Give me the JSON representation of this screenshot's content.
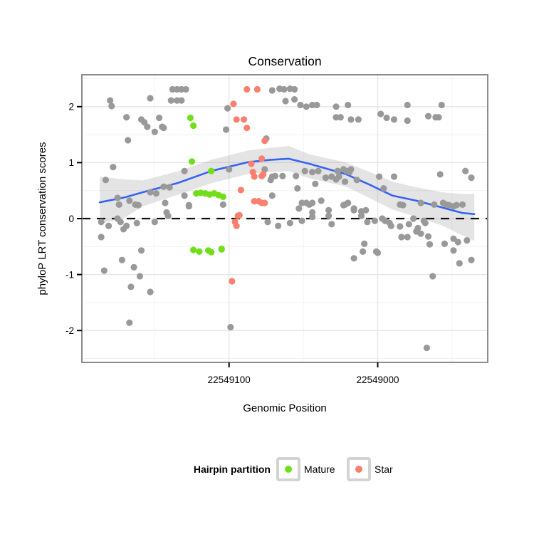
{
  "title": "Conservation",
  "legend": {
    "title": "Hairpin partition",
    "items": [
      {
        "label": "Mature"
      },
      {
        "label": "Star"
      }
    ]
  },
  "chart_data": {
    "type": "scatter",
    "title": "Conservation",
    "xlabel": "Genomic Position",
    "ylabel": "phyloP LRT conservation scores",
    "x_axis": {
      "domain_left": 22549199,
      "domain_right": 22548926,
      "ticks": [
        22549100,
        22549000
      ],
      "minor_ticks": [
        22549150,
        22549050,
        22548950
      ],
      "reversed": true
    },
    "y_axis": {
      "domain_min": -2.57,
      "domain_max": 2.57,
      "ticks": [
        2,
        1,
        0,
        -1,
        -2
      ],
      "minor_ticks": [
        2.5,
        1.5,
        0.5,
        -0.5,
        -1.5,
        -2.5
      ]
    },
    "reference_line": {
      "y": 0,
      "style": "dashed",
      "color": "#111111"
    },
    "point_radius": 4.6,
    "grid": {
      "major_color": "#e4e4e4",
      "minor_color": "#f2f2f2"
    },
    "panel": {
      "border_color": "#8c8c8c",
      "background": "#ffffff"
    },
    "smooth": {
      "color": "#3564f2",
      "band_color": "#9e9e9e",
      "band_opacity": 0.28,
      "line": [
        [
          22549187,
          0.29
        ],
        [
          22549170,
          0.38
        ],
        [
          22549158,
          0.47
        ],
        [
          22549134,
          0.64
        ],
        [
          22549112,
          0.85
        ],
        [
          22549087,
          1.01
        ],
        [
          22549072,
          1.05
        ],
        [
          22549060,
          1.07
        ],
        [
          22549046,
          0.98
        ],
        [
          22549021,
          0.79
        ],
        [
          22549005,
          0.6
        ],
        [
          22548990,
          0.41
        ],
        [
          22548974,
          0.32
        ],
        [
          22548957,
          0.2
        ],
        [
          22548943,
          0.1
        ],
        [
          22548935,
          0.08
        ]
      ],
      "band": [
        [
          22549187,
          0.75,
          -0.1
        ],
        [
          22549170,
          0.7,
          0.02
        ],
        [
          22549158,
          0.68,
          0.22
        ],
        [
          22549134,
          0.85,
          0.43
        ],
        [
          22549112,
          1.05,
          0.63
        ],
        [
          22549087,
          1.22,
          0.8
        ],
        [
          22549060,
          1.3,
          0.85
        ],
        [
          22549046,
          1.15,
          0.72
        ],
        [
          22549021,
          1.0,
          0.57
        ],
        [
          22549005,
          0.83,
          0.36
        ],
        [
          22548990,
          0.66,
          0.16
        ],
        [
          22548974,
          0.56,
          0.03
        ],
        [
          22548957,
          0.47,
          -0.12
        ],
        [
          22548943,
          0.44,
          -0.3
        ],
        [
          22548935,
          0.44,
          -0.4
        ]
      ]
    },
    "series": [
      {
        "name": "Flank",
        "color": "#999999",
        "in_legend": false,
        "points": [
          [
            22549180,
            2.11
          ],
          [
            22549179,
            2.01
          ],
          [
            22549153,
            2.15
          ],
          [
            22549138,
            2.31
          ],
          [
            22549135,
            2.31
          ],
          [
            22549132,
            2.31
          ],
          [
            22549129,
            2.31
          ],
          [
            22549139,
            2.11
          ],
          [
            22549135,
            2.11
          ],
          [
            22549132,
            2.11
          ],
          [
            22549169,
            1.81
          ],
          [
            22549159,
            1.77
          ],
          [
            22549157,
            1.72
          ],
          [
            22549155,
            1.64
          ],
          [
            22549147,
            1.8
          ],
          [
            22549145,
            1.64
          ],
          [
            22549144,
            1.62
          ],
          [
            22549150,
            1.55
          ],
          [
            22549168,
            1.4
          ],
          [
            22549178,
            0.92
          ],
          [
            22549183,
            0.69
          ],
          [
            22549130,
            0.85
          ],
          [
            22549130,
            0.41
          ],
          [
            22549127,
            0.24
          ],
          [
            22549175,
            0.37
          ],
          [
            22549174,
            0.25
          ],
          [
            22549167,
            0.32
          ],
          [
            22549163,
            0.25
          ],
          [
            22549161,
            0.24
          ],
          [
            22549153,
            0.47
          ],
          [
            22549149,
            0.45
          ],
          [
            22549144,
            0.57
          ],
          [
            22549140,
            0.56
          ],
          [
            22549143,
            0.28
          ],
          [
            22549142,
            0.11
          ],
          [
            22549186,
            -0.06
          ],
          [
            22549181,
            -0.13
          ],
          [
            22549175,
            0.0
          ],
          [
            22549173,
            -0.06
          ],
          [
            22549171,
            -0.19
          ],
          [
            22549169,
            -0.13
          ],
          [
            22549162,
            -0.08
          ],
          [
            22549150,
            -0.06
          ],
          [
            22549141,
            0.05
          ],
          [
            22549186,
            -0.33
          ],
          [
            22549159,
            -0.57
          ],
          [
            22549172,
            -0.74
          ],
          [
            22549164,
            -0.87
          ],
          [
            22549184,
            -0.93
          ],
          [
            22549160,
            -1.03
          ],
          [
            22549166,
            -1.22
          ],
          [
            22549153,
            -1.31
          ],
          [
            22549167,
            -1.86
          ],
          [
            22549104,
            0.25
          ],
          [
            22549127,
            0.22
          ],
          [
            22549101,
            1.97
          ],
          [
            22549102,
            1.59
          ],
          [
            22549071,
            2.29
          ],
          [
            22549066,
            2.32
          ],
          [
            22549063,
            2.31
          ],
          [
            22549059,
            2.32
          ],
          [
            22549056,
            2.31
          ],
          [
            22549062,
            2.1
          ],
          [
            22549056,
            2.13
          ],
          [
            22549052,
            2.03
          ],
          [
            22549048,
            2.0
          ],
          [
            22549044,
            2.03
          ],
          [
            22549041,
            2.03
          ],
          [
            22549075,
            1.43
          ],
          [
            22549100,
            0.88
          ],
          [
            22549076,
            0.88
          ],
          [
            22549072,
            0.69
          ],
          [
            22549071,
            0.75
          ],
          [
            22549069,
            0.76
          ],
          [
            22549064,
            0.76
          ],
          [
            22549071,
            0.41
          ],
          [
            22549028,
            2.0
          ],
          [
            22549020,
            2.03
          ],
          [
            22549028,
            1.81
          ],
          [
            22549025,
            1.81
          ],
          [
            22549018,
            1.77
          ],
          [
            22549013,
            1.77
          ],
          [
            22548998,
            1.87
          ],
          [
            22548994,
            1.8
          ],
          [
            22548989,
            1.77
          ],
          [
            22548980,
            2.03
          ],
          [
            22548980,
            1.75
          ],
          [
            22548966,
            1.83
          ],
          [
            22548961,
            1.81
          ],
          [
            22548959,
            1.81
          ],
          [
            22548957,
            2.03
          ],
          [
            22549055,
            0.76
          ],
          [
            22549049,
            0.85
          ],
          [
            22549044,
            0.83
          ],
          [
            22549040,
            0.85
          ],
          [
            22549042,
            0.62
          ],
          [
            22549035,
            0.73
          ],
          [
            22549031,
            0.75
          ],
          [
            22549028,
            0.7
          ],
          [
            22549026,
            0.75
          ],
          [
            22549027,
            0.85
          ],
          [
            22549023,
            0.88
          ],
          [
            22549021,
            0.85
          ],
          [
            22549018,
            0.88
          ],
          [
            22549022,
            0.66
          ],
          [
            22549014,
            0.69
          ],
          [
            22548999,
            0.75
          ],
          [
            22549054,
            0.54
          ],
          [
            22549053,
            0.18
          ],
          [
            22549051,
            0.28
          ],
          [
            22549048,
            0.28
          ],
          [
            22549046,
            0.25
          ],
          [
            22549044,
            0.28
          ],
          [
            22549038,
            0.32
          ],
          [
            22549033,
            0.15
          ],
          [
            22549023,
            0.24
          ],
          [
            22549020,
            0.28
          ],
          [
            22549016,
            0.18
          ],
          [
            22549011,
            0.13
          ],
          [
            22549008,
            0.15
          ],
          [
            22549074,
            -0.06
          ],
          [
            22549067,
            -0.13
          ],
          [
            22549059,
            -0.08
          ],
          [
            22549051,
            -0.04
          ],
          [
            22549044,
            0.03
          ],
          [
            22549033,
            0.05
          ],
          [
            22549031,
            -0.1
          ],
          [
            22549099,
            -1.94
          ],
          [
            22549044,
            0.11
          ],
          [
            22549011,
            0.05
          ],
          [
            22549007,
            -0.06
          ],
          [
            22549002,
            -0.04
          ],
          [
            22548997,
            0.0
          ],
          [
            22548995,
            -0.04
          ],
          [
            22548992,
            -0.08
          ],
          [
            22548991,
            -0.13
          ],
          [
            22548985,
            -0.14
          ],
          [
            22548984,
            -0.33
          ],
          [
            22548980,
            -0.33
          ],
          [
            22548979,
            -0.1
          ],
          [
            22548976,
            0.0
          ],
          [
            22548974,
            -0.23
          ],
          [
            22548973,
            -0.17
          ],
          [
            22548971,
            -0.27
          ],
          [
            22548969,
            -0.04
          ],
          [
            22548968,
            -0.08
          ],
          [
            22548966,
            -0.32
          ],
          [
            22548965,
            -0.46
          ],
          [
            22548955,
            -0.45
          ],
          [
            22548949,
            -0.36
          ],
          [
            22548946,
            -0.42
          ],
          [
            22548940,
            -0.39
          ],
          [
            22548949,
            -0.57
          ],
          [
            22549009,
            -0.45
          ],
          [
            22549010,
            -0.59
          ],
          [
            22549001,
            -0.59
          ],
          [
            22549000,
            -0.61
          ],
          [
            22549016,
            -0.71
          ],
          [
            22548945,
            -0.8
          ],
          [
            22548937,
            -0.74
          ],
          [
            22548963,
            -1.03
          ],
          [
            22548967,
            -2.31
          ],
          [
            22548958,
            0.79
          ],
          [
            22548941,
            0.85
          ],
          [
            22548937,
            0.73
          ],
          [
            22549019,
            0.83
          ],
          [
            22548996,
            0.54
          ],
          [
            22548989,
            0.75
          ],
          [
            22548985,
            0.25
          ],
          [
            22548983,
            0.24
          ],
          [
            22548971,
            0.28
          ],
          [
            22548962,
            0.25
          ],
          [
            22548956,
            0.28
          ],
          [
            22548954,
            0.25
          ],
          [
            22548952,
            0.24
          ],
          [
            22548949,
            0.22
          ],
          [
            22548947,
            0.24
          ],
          [
            22548943,
            0.25
          ],
          [
            22549022,
            0.25
          ],
          [
            22549016,
            0.15
          ]
        ]
      },
      {
        "name": "Mature",
        "color": "#70df1a",
        "in_legend": true,
        "points": [
          [
            22549126,
            1.8
          ],
          [
            22549124,
            1.66
          ],
          [
            22549125,
            1.02
          ],
          [
            22549112,
            0.85
          ],
          [
            22549122,
            0.45
          ],
          [
            22549119,
            0.46
          ],
          [
            22549116,
            0.45
          ],
          [
            22549113,
            0.43
          ],
          [
            22549110,
            0.45
          ],
          [
            22549107,
            0.42
          ],
          [
            22549104,
            0.39
          ],
          [
            22549105,
            -0.54
          ],
          [
            22549124,
            -0.56
          ],
          [
            22549120,
            -0.59
          ],
          [
            22549114,
            -0.57
          ],
          [
            22549112,
            -0.6
          ],
          [
            22549105,
            -0.55
          ]
        ]
      },
      {
        "name": "Star",
        "color": "#f9806f",
        "in_legend": true,
        "points": [
          [
            22549088,
            2.31
          ],
          [
            22549081,
            2.31
          ],
          [
            22549097,
            2.05
          ],
          [
            22549095,
            1.77
          ],
          [
            22549090,
            1.77
          ],
          [
            22549088,
            1.62
          ],
          [
            22549076,
            1.39
          ],
          [
            22549078,
            1.07
          ],
          [
            22549085,
            0.98
          ],
          [
            22549084,
            0.83
          ],
          [
            22549083,
            0.75
          ],
          [
            22549078,
            0.76
          ],
          [
            22549077,
            0.79
          ],
          [
            22549092,
            0.51
          ],
          [
            22549083,
            0.31
          ],
          [
            22549080,
            0.31
          ],
          [
            22549078,
            0.28
          ],
          [
            22549076,
            0.28
          ],
          [
            22549093,
            0.06
          ],
          [
            22549094,
            0.05
          ],
          [
            22549096,
            -0.06
          ],
          [
            22549095,
            -0.13
          ],
          [
            22549098,
            -1.12
          ]
        ]
      }
    ]
  }
}
